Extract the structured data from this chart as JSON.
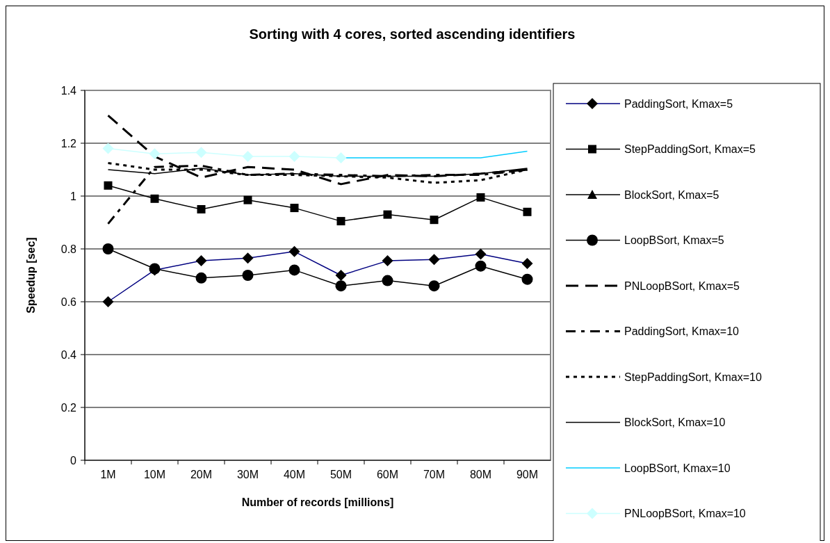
{
  "chart_data": {
    "type": "line",
    "title": "Sorting with 4 cores, sorted ascending identifiers",
    "xlabel": "Number of records [millions]",
    "ylabel": "Speedup [sec]",
    "categories": [
      "1M",
      "10M",
      "20M",
      "30M",
      "40M",
      "50M",
      "60M",
      "70M",
      "80M",
      "90M"
    ],
    "ylim": [
      0,
      1.4
    ],
    "yticks": [
      0,
      0.2,
      0.4,
      0.6,
      0.8,
      1,
      1.2,
      1.4
    ],
    "grid": "y",
    "legend": "right",
    "series": [
      {
        "name": "PaddingSort, Kmax=5",
        "color": "#000080",
        "marker": "diamond",
        "line_style": "solid",
        "values": [
          0.6,
          0.72,
          0.755,
          0.765,
          0.79,
          0.7,
          0.755,
          0.76,
          0.78,
          0.745
        ]
      },
      {
        "name": "StepPaddingSort, Kmax=5",
        "color": "#000000",
        "marker": "square",
        "line_style": "solid",
        "values": [
          1.04,
          0.99,
          0.95,
          0.985,
          0.955,
          0.905,
          0.93,
          0.91,
          0.995,
          0.94
        ]
      },
      {
        "name": "BlockSort, Kmax=5",
        "color": "#000000",
        "marker": "triangle",
        "line_style": "solid",
        "values": [
          null,
          null,
          null,
          null,
          null,
          null,
          null,
          null,
          null,
          null
        ]
      },
      {
        "name": "LoopBSort, Kmax=5",
        "color": "#000000",
        "marker": "circle",
        "line_style": "solid",
        "values": [
          0.8,
          0.725,
          0.69,
          0.7,
          0.72,
          0.66,
          0.68,
          0.66,
          0.735,
          0.685
        ]
      },
      {
        "name": "PNLoopBSort, Kmax=5",
        "color": "#000000",
        "marker": "none",
        "line_style": "dashed",
        "values": [
          1.305,
          1.15,
          1.07,
          1.11,
          1.1,
          1.045,
          1.08,
          1.075,
          1.085,
          1.1
        ]
      },
      {
        "name": "PaddingSort, Kmax=10",
        "color": "#000000",
        "marker": "none",
        "line_style": "dashdot",
        "values": [
          0.895,
          1.11,
          1.115,
          1.08,
          1.085,
          1.08,
          1.075,
          1.08,
          1.08,
          1.1
        ]
      },
      {
        "name": "StepPaddingSort, Kmax=10",
        "color": "#000000",
        "marker": "none",
        "line_style": "dotted",
        "values": [
          1.125,
          1.1,
          1.1,
          1.08,
          1.08,
          1.075,
          1.07,
          1.05,
          1.06,
          1.1
        ]
      },
      {
        "name": "BlockSort, Kmax=10",
        "color": "#000000",
        "marker": "none",
        "line_style": "solid",
        "values": [
          1.1,
          1.085,
          1.105,
          1.08,
          1.085,
          1.075,
          1.075,
          1.075,
          1.085,
          1.105
        ]
      },
      {
        "name": "LoopBSort, Kmax=10",
        "color": "#00ccff",
        "marker": "none",
        "line_style": "solid",
        "values": [
          null,
          null,
          null,
          null,
          null,
          1.145,
          1.145,
          1.145,
          1.145,
          1.17
        ]
      },
      {
        "name": "PNLoopBSort, Kmax=10",
        "color": "#ccffff",
        "marker": "diamond",
        "line_style": "solid",
        "values": [
          1.18,
          1.16,
          1.165,
          1.15,
          1.15,
          1.145,
          null,
          null,
          null,
          null
        ]
      }
    ]
  }
}
